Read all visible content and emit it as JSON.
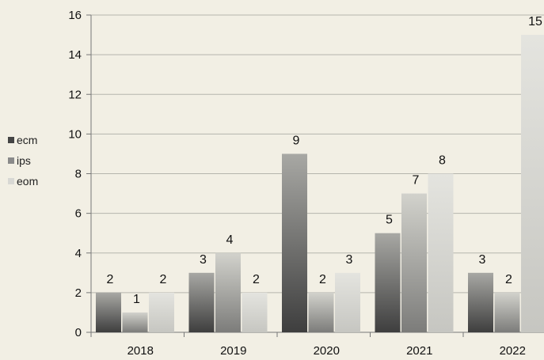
{
  "chart_data": {
    "type": "bar",
    "categories": [
      "2018",
      "2019",
      "2020",
      "2021",
      "2022"
    ],
    "series": [
      {
        "name": "ecm",
        "values": [
          2,
          3,
          9,
          5,
          3
        ],
        "color": "#5a5a5a"
      },
      {
        "name": "ips",
        "values": [
          1,
          4,
          2,
          7,
          2
        ],
        "color": "#9a9a9a"
      },
      {
        "name": "eom",
        "values": [
          2,
          2,
          3,
          8,
          15
        ],
        "color": "#d6d6d2"
      }
    ],
    "ylim": [
      0,
      16
    ],
    "yticks": [
      "0",
      "2",
      "4",
      "6",
      "8",
      "10",
      "12",
      "14",
      "16"
    ],
    "grid": true,
    "legend_position": "left"
  }
}
